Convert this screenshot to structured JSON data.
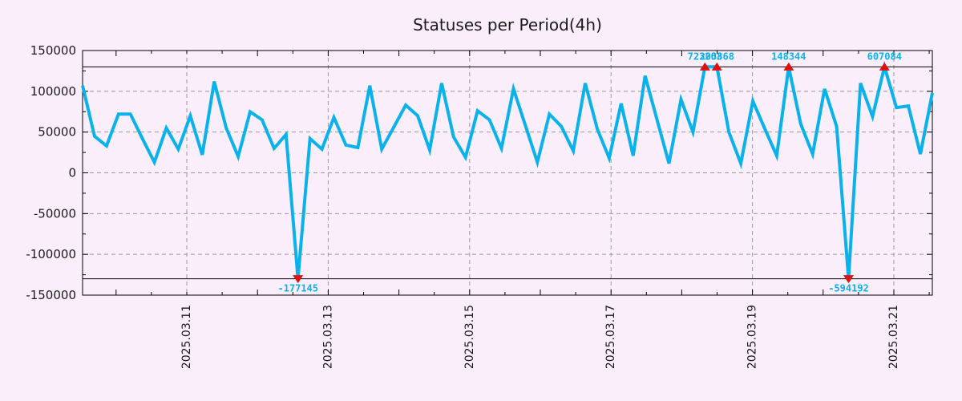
{
  "chart_data": {
    "type": "line",
    "title": "Statuses per Period(4h)",
    "period": "4h",
    "x_tick_labels": [
      "2025.03.11",
      "2025.03.13",
      "2025.03.15",
      "2025.03.17",
      "2025.03.19",
      "2025.03.21"
    ],
    "y_tick_labels": [
      "150000",
      "100000",
      "50000",
      "0",
      "-50000",
      "-100000",
      "-150000"
    ],
    "ylim": [
      -150000,
      150000
    ],
    "y_major_step": 50000,
    "clip_threshold": 130000,
    "grid": "on",
    "series": [
      {
        "name": "statuses-per-period",
        "values": [
          107000,
          45000,
          33000,
          72000,
          72000,
          42000,
          13000,
          55000,
          29000,
          70000,
          22000,
          112000,
          55000,
          20000,
          75000,
          65000,
          30000,
          47000,
          -177145,
          42000,
          29000,
          68000,
          34000,
          31000,
          107000,
          29000,
          56000,
          83000,
          70000,
          28000,
          110000,
          44000,
          19000,
          76000,
          65000,
          30000,
          103000,
          58000,
          13000,
          72000,
          57000,
          27000,
          110000,
          54000,
          18000,
          85000,
          21000,
          119000,
          65000,
          11500,
          90000,
          50000,
          723203,
          203868,
          50000,
          11500,
          88000,
          54000,
          21000,
          148344,
          60000,
          23000,
          103000,
          57000,
          -594192,
          110000,
          69000,
          607084,
          80000,
          82000,
          23000,
          98000
        ]
      }
    ],
    "annotations": [
      {
        "index": 18,
        "label": "-177145",
        "direction": "down"
      },
      {
        "index": 52,
        "label": "723203",
        "direction": "up"
      },
      {
        "index": 53,
        "label": "203868",
        "direction": "up"
      },
      {
        "index": 59,
        "label": "148344",
        "direction": "up"
      },
      {
        "index": 64,
        "label": "-594192",
        "direction": "down"
      },
      {
        "index": 67,
        "label": "607084",
        "direction": "up"
      }
    ],
    "colors": {
      "background": "#fbeefb",
      "line": "#0ab2ec",
      "marker": "#e01010",
      "annotation_text": "#0ab2ec",
      "grid": "#999999",
      "axis": "#000000",
      "text": "#1a1a1a"
    }
  }
}
